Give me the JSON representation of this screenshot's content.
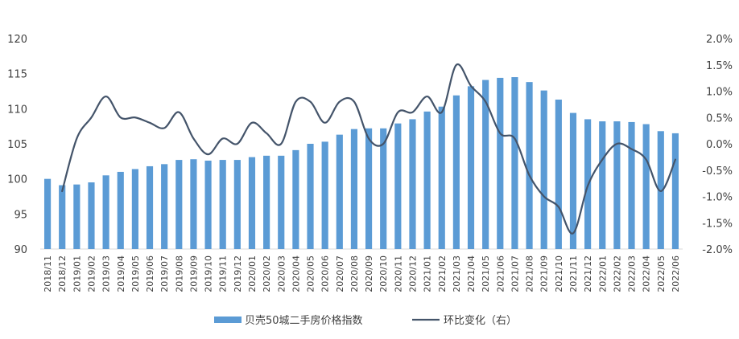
{
  "chart_data": {
    "type": "bar",
    "categories": [
      "2018/11",
      "2018/12",
      "2019/01",
      "2019/02",
      "2019/03",
      "2019/04",
      "2019/05",
      "2019/06",
      "2019/07",
      "2019/08",
      "2019/09",
      "2019/10",
      "2019/11",
      "2019/12",
      "2020/01",
      "2020/02",
      "2020/03",
      "2020/04",
      "2020/05",
      "2020/06",
      "2020/07",
      "2020/08",
      "2020/09",
      "2020/10",
      "2020/11",
      "2020/12",
      "2021/01",
      "2021/02",
      "2021/03",
      "2021/04",
      "2021/05",
      "2021/06",
      "2021/07",
      "2021/08",
      "2021/09",
      "2021/10",
      "2021/11",
      "2021/12",
      "2022/01",
      "2022/02",
      "2022/03",
      "2022/04",
      "2022/05",
      "2022/06"
    ],
    "series": [
      {
        "name": "贝壳50城二手房价格指数",
        "type": "bar",
        "axis": "left",
        "color": "#5B9BD5",
        "values": [
          100.0,
          99.1,
          99.2,
          99.5,
          100.5,
          101.0,
          101.4,
          101.8,
          102.1,
          102.7,
          102.8,
          102.6,
          102.7,
          102.7,
          103.1,
          103.3,
          103.3,
          104.1,
          105.0,
          105.3,
          106.3,
          107.1,
          107.2,
          107.2,
          107.9,
          108.5,
          109.6,
          110.3,
          111.9,
          113.2,
          114.1,
          114.4,
          114.5,
          113.8,
          112.6,
          111.3,
          109.4,
          108.5,
          108.2,
          108.2,
          108.1,
          107.8,
          106.8,
          106.5
        ]
      },
      {
        "name": "环比变化（右）",
        "type": "line",
        "axis": "right",
        "color": "#44546A",
        "values": [
          null,
          -0.9,
          0.1,
          0.5,
          0.9,
          0.5,
          0.5,
          0.4,
          0.3,
          0.6,
          0.1,
          -0.2,
          0.1,
          0.0,
          0.4,
          0.2,
          0.0,
          0.8,
          0.8,
          0.4,
          0.8,
          0.8,
          0.1,
          0.0,
          0.6,
          0.6,
          0.9,
          0.6,
          1.5,
          1.1,
          0.8,
          0.2,
          0.1,
          -0.6,
          -1.0,
          -1.2,
          -1.7,
          -0.8,
          -0.3,
          0.0,
          -0.1,
          -0.3,
          -0.9,
          -0.3
        ]
      }
    ],
    "ylim_left": [
      90,
      120
    ],
    "yticks_left": [
      "90",
      "95",
      "100",
      "105",
      "110",
      "115",
      "120"
    ],
    "ylim_right": [
      -2.0,
      2.0
    ],
    "yticks_right": [
      "-2.0%",
      "-1.5%",
      "-1.0%",
      "-0.5%",
      "0.0%",
      "0.5%",
      "1.0%",
      "1.5%",
      "2.0%"
    ],
    "grid": false,
    "legend_position": "bottom",
    "title": "",
    "xlabel": "",
    "ylabel": ""
  }
}
